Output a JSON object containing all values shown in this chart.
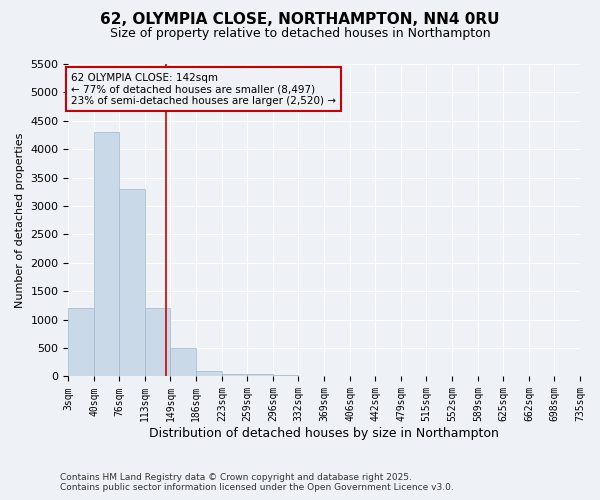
{
  "title": "62, OLYMPIA CLOSE, NORTHAMPTON, NN4 0RU",
  "subtitle": "Size of property relative to detached houses in Northampton",
  "xlabel": "Distribution of detached houses by size in Northampton",
  "ylabel": "Number of detached properties",
  "bar_edges": [
    3,
    40,
    76,
    113,
    149,
    186,
    223,
    259,
    296,
    332,
    369,
    406,
    442,
    479,
    515,
    552,
    589,
    625,
    662,
    698,
    735
  ],
  "bar_heights": [
    1200,
    4300,
    3300,
    1200,
    500,
    100,
    50,
    50,
    20,
    10,
    5,
    3,
    2,
    1,
    1,
    0,
    0,
    0,
    0,
    0
  ],
  "bar_color": "#c9d9e8",
  "bar_edge_color": "#a0b8cc",
  "property_size": 142,
  "property_line_color": "#cc0000",
  "annotation_text": "62 OLYMPIA CLOSE: 142sqm\n← 77% of detached houses are smaller (8,497)\n23% of semi-detached houses are larger (2,520) →",
  "annotation_box_color": "#cc0000",
  "annotation_text_color": "#000000",
  "ylim": [
    0,
    5500
  ],
  "yticks": [
    0,
    500,
    1000,
    1500,
    2000,
    2500,
    3000,
    3500,
    4000,
    4500,
    5000,
    5500
  ],
  "footer_line1": "Contains HM Land Registry data © Crown copyright and database right 2025.",
  "footer_line2": "Contains public sector information licensed under the Open Government Licence v3.0.",
  "bg_color": "#eef2f7",
  "grid_color": "#ffffff"
}
